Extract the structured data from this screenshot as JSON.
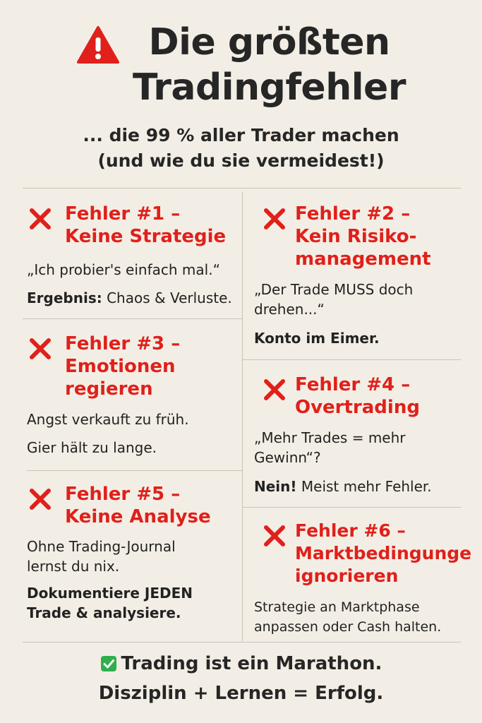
{
  "header": {
    "title_line1": "Die größten",
    "title_line2": "Tradingfehler",
    "subtitle_line1": "... die 99 % aller Trader machen",
    "subtitle_line2": "(und wie du sie vermeidest!)",
    "warning_icon": "warning-triangle-icon"
  },
  "errors": [
    {
      "title_line1": "Fehler #1 –",
      "title_line2": "Keine Strategie",
      "quote": "„Ich probier's einfach mal.“",
      "result_bold": "Ergebnis:",
      "result_rest": " Chaos & Verluste."
    },
    {
      "title_line1": "Fehler #2 –",
      "title_line2": "Kein Risiko-",
      "title_line3": "management",
      "quote_line1": "„Der Trade MUSS doch",
      "quote_line2": "drehen...“",
      "result_bold": "Konto im Eimer."
    },
    {
      "title_line1": "Fehler #3 –",
      "title_line2": "Emotionen",
      "title_line3": "regieren",
      "text_line1": "Angst verkauft zu früh.",
      "text_line2": "Gier hält zu lange."
    },
    {
      "title_line1": "Fehler #4 –",
      "title_line2": "Overtrading",
      "quote_line1": "„Mehr Trades = mehr",
      "quote_line2": "Gewinn“?",
      "result_bold": "Nein!",
      "result_rest": " Meist mehr Fehler."
    },
    {
      "title_line1": "Fehler #5 –",
      "title_line2": "Keine Analyse",
      "text_line1": "Ohne Trading-Journal",
      "text_line2": "lernst du nix.",
      "bold_line1": "Dokumentiere JEDEN",
      "bold_line2": "Trade & analysiere."
    },
    {
      "title_line1": "Fehler #6 –",
      "title_line2": "Marktbedingunge",
      "title_line3": "ignorieren",
      "text_line1": "Strategie an Marktphase",
      "text_line2": "anpassen oder Cash halten."
    }
  ],
  "footer": {
    "line1": "Trading ist ein Marathon.",
    "line2": "Disziplin + Lernen = Erfolg.",
    "check_icon": "check-box-icon"
  },
  "colors": {
    "background": "#f3eee5",
    "accent_red": "#e0201b",
    "text": "#262626",
    "check_green": "#2fae4e"
  }
}
